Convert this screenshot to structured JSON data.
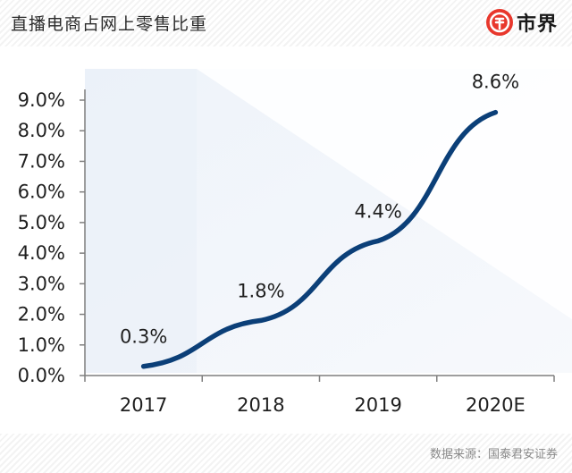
{
  "header": {
    "title": "直播电商占网上零售比重",
    "brand_name": "市界"
  },
  "footer": {
    "source": "数据来源：国泰君安证券"
  },
  "chart_data": {
    "type": "line",
    "categories": [
      "2017",
      "2018",
      "2019",
      "2020E"
    ],
    "values": [
      0.3,
      1.8,
      4.4,
      8.6
    ],
    "value_labels": [
      "0.3%",
      "1.8%",
      "4.4%",
      "8.6%"
    ],
    "y_ticks": [
      "0.0%",
      "1.0%",
      "2.0%",
      "3.0%",
      "4.0%",
      "5.0%",
      "6.0%",
      "7.0%",
      "8.0%",
      "9.0%"
    ],
    "ylim": [
      0,
      9
    ],
    "title": "",
    "xlabel": "",
    "ylabel": "",
    "grid": false,
    "line_color": "#0b3f78",
    "axis_color": "#7f7f7f"
  }
}
